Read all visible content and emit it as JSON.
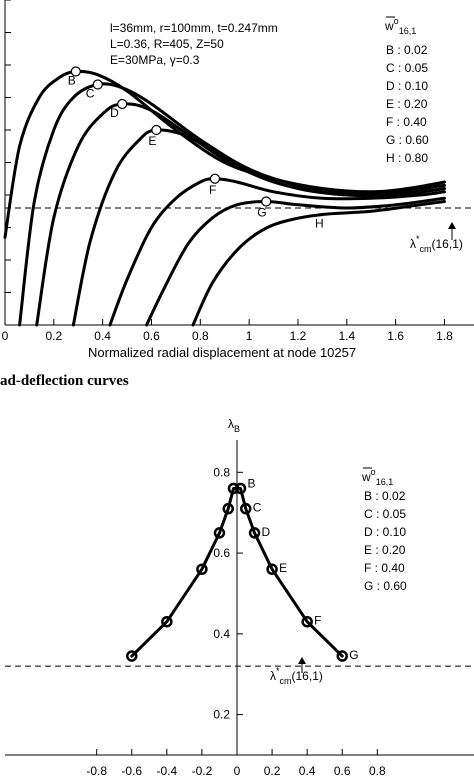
{
  "chart_data": [
    {
      "type": "line",
      "xlabel": "Normalized radial displacement at node 10257",
      "xlim": [
        0,
        1.8
      ],
      "ylim": [
        0,
        1.0
      ],
      "x_ticks": [
        "0",
        "0.2",
        "0.4",
        "0.6",
        "0.8",
        "1",
        "1.2",
        "1.4",
        "1.6",
        "1.8"
      ],
      "params": [
        "l=36mm, r=100mm, t=0.247mm",
        "L=0.36, R=405, Z=50",
        "E=30MPa, γ=0.3"
      ],
      "legend_title": "w̅o16,1",
      "legend": [
        "B :  0.02",
        "C :  0.05",
        "D :  0.10",
        "E :  0.20",
        "F :  0.40",
        "G :  0.60",
        "H :  0.80"
      ],
      "reference_label": "λ*cm(16,1)",
      "reference_value": 0.36,
      "series": [
        {
          "name": "B",
          "peak": [
            0.29,
            0.78
          ],
          "x": [
            0.0,
            0.06,
            0.14,
            0.22,
            0.29,
            0.38,
            0.5,
            0.7,
            0.9,
            1.1,
            1.3,
            1.5,
            1.65,
            1.8
          ],
          "y": [
            0.27,
            0.55,
            0.7,
            0.76,
            0.78,
            0.77,
            0.72,
            0.6,
            0.5,
            0.45,
            0.42,
            0.41,
            0.42,
            0.44
          ]
        },
        {
          "name": "C",
          "peak": [
            0.38,
            0.74
          ],
          "x": [
            0.06,
            0.12,
            0.2,
            0.28,
            0.38,
            0.48,
            0.6,
            0.8,
            1.0,
            1.2,
            1.4,
            1.6,
            1.8
          ],
          "y": [
            0.0,
            0.38,
            0.6,
            0.7,
            0.74,
            0.73,
            0.68,
            0.57,
            0.48,
            0.43,
            0.41,
            0.41,
            0.43
          ]
        },
        {
          "name": "D",
          "peak": [
            0.48,
            0.68
          ],
          "x": [
            0.13,
            0.2,
            0.3,
            0.4,
            0.48,
            0.6,
            0.8,
            1.0,
            1.2,
            1.4,
            1.6,
            1.8
          ],
          "y": [
            0.0,
            0.33,
            0.55,
            0.65,
            0.68,
            0.66,
            0.56,
            0.47,
            0.42,
            0.4,
            0.4,
            0.42
          ]
        },
        {
          "name": "E",
          "peak": [
            0.62,
            0.6
          ],
          "x": [
            0.28,
            0.35,
            0.45,
            0.55,
            0.62,
            0.75,
            0.9,
            1.1,
            1.3,
            1.5,
            1.7,
            1.8
          ],
          "y": [
            0.0,
            0.26,
            0.47,
            0.57,
            0.6,
            0.58,
            0.51,
            0.44,
            0.41,
            0.4,
            0.41,
            0.42
          ]
        },
        {
          "name": "F",
          "peak": [
            0.86,
            0.45
          ],
          "x": [
            0.43,
            0.5,
            0.6,
            0.7,
            0.8,
            0.86,
            0.95,
            1.1,
            1.3,
            1.5,
            1.7,
            1.8
          ],
          "y": [
            0.0,
            0.14,
            0.3,
            0.39,
            0.44,
            0.45,
            0.44,
            0.41,
            0.39,
            0.39,
            0.4,
            0.41
          ]
        },
        {
          "name": "G",
          "peak": [
            1.07,
            0.38
          ],
          "x": [
            0.58,
            0.65,
            0.75,
            0.85,
            0.95,
            1.07,
            1.2,
            1.4,
            1.6,
            1.8
          ],
          "y": [
            0.0,
            0.11,
            0.25,
            0.33,
            0.37,
            0.38,
            0.37,
            0.36,
            0.37,
            0.39
          ]
        },
        {
          "name": "H",
          "x": [
            0.77,
            0.85,
            0.95,
            1.05,
            1.15,
            1.3,
            1.5,
            1.7,
            1.8
          ],
          "y": [
            0.0,
            0.13,
            0.23,
            0.29,
            0.32,
            0.34,
            0.35,
            0.37,
            0.38
          ]
        }
      ]
    },
    {
      "type": "line",
      "title": "λB",
      "xlim": [
        -1.0,
        1.0
      ],
      "ylim": [
        0.1,
        0.88
      ],
      "x_ticks": [
        "-0.8",
        "-0.6",
        "-0.4",
        "-0.2",
        "0",
        "0.2",
        "0.4",
        "0.6",
        "0.8"
      ],
      "y_ticks": [
        "0.2",
        "0.4",
        "0.6",
        "0.8"
      ],
      "legend_title": "w̅o16,1",
      "legend": [
        "B :  0.02",
        "C :  0.05",
        "D :  0.10",
        "E :  0.20",
        "F :  0.40",
        "G :  0.60"
      ],
      "reference_label": "λ*cm(16,1)",
      "reference_value": 0.32,
      "point_labels": [
        "B",
        "C",
        "D",
        "E",
        "F",
        "G"
      ],
      "series": [
        {
          "name": "",
          "x": [
            -0.6,
            -0.4,
            -0.2,
            -0.1,
            -0.05,
            -0.02,
            0.02,
            0.05,
            0.1,
            0.2,
            0.4,
            0.6
          ],
          "y": [
            0.345,
            0.43,
            0.56,
            0.65,
            0.71,
            0.76,
            0.76,
            0.71,
            0.65,
            0.56,
            0.43,
            0.345
          ]
        }
      ]
    }
  ],
  "caption": "ad-deflection curves"
}
